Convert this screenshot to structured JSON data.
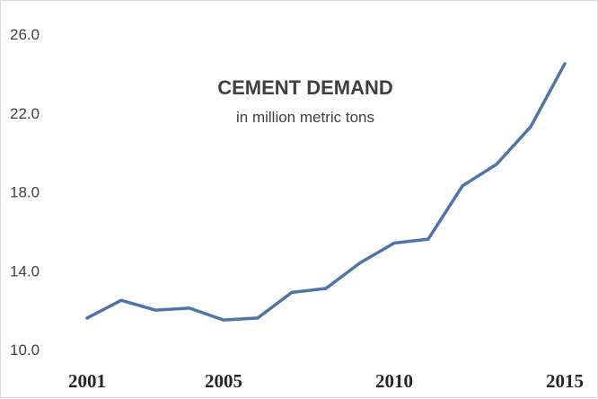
{
  "chart_data": {
    "type": "line",
    "title": "CEMENT DEMAND",
    "subtitle": "in million metric tons",
    "xlabel": "",
    "ylabel": "",
    "x": [
      2001,
      2002,
      2003,
      2004,
      2005,
      2006,
      2007,
      2008,
      2009,
      2010,
      2011,
      2012,
      2013,
      2014,
      2015
    ],
    "x_tick_labels": [
      "2001",
      "2005",
      "2010",
      "2015"
    ],
    "y_tick_labels": [
      "10.0",
      "14.0",
      "18.0",
      "22.0",
      "26.0"
    ],
    "ylim": [
      10,
      26
    ],
    "grid": false,
    "series": [
      {
        "values": [
          11.6,
          12.5,
          12.0,
          12.1,
          11.5,
          11.6,
          12.9,
          13.1,
          14.4,
          15.4,
          15.6,
          18.3,
          19.4,
          21.3,
          24.5
        ],
        "color": "#4f74aa"
      }
    ]
  }
}
